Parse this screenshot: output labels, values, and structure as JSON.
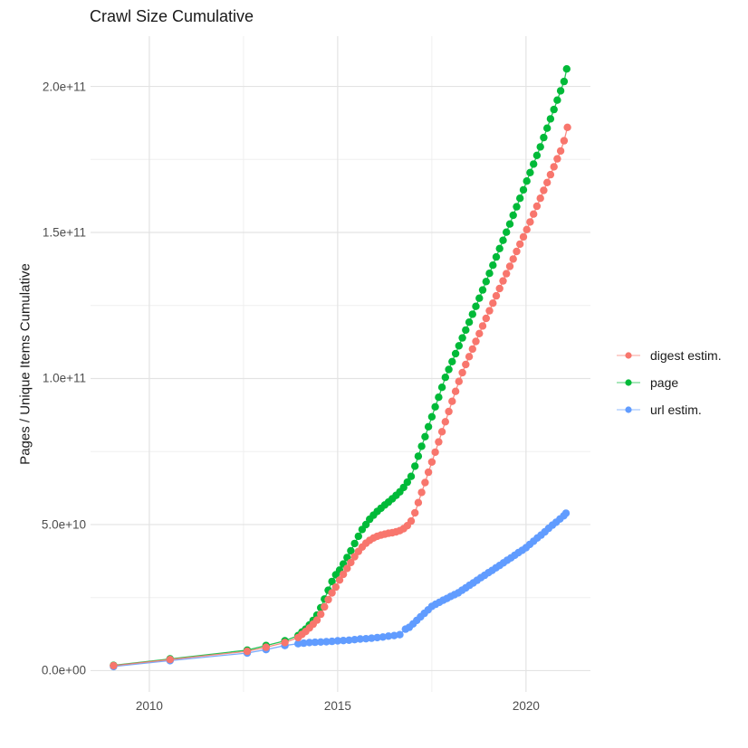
{
  "title": "Crawl Size Cumulative",
  "axes": {
    "y_title": "Pages / Unique Items Cumulative",
    "x_title": "",
    "x_ticks": [
      {
        "value": 2010,
        "label": "2010"
      },
      {
        "value": 2015,
        "label": "2015"
      },
      {
        "value": 2020,
        "label": "2020"
      }
    ],
    "x_minor": [
      2012.5,
      2017.5
    ],
    "y_ticks": [
      {
        "value_e9": 0,
        "label": "0.0e+00"
      },
      {
        "value_e9": 50,
        "label": "5.0e+10"
      },
      {
        "value_e9": 100,
        "label": "1.0e+11"
      },
      {
        "value_e9": 150,
        "label": "1.5e+11"
      },
      {
        "value_e9": 200,
        "label": "2.0e+11"
      }
    ],
    "y_minor_e9": [
      25,
      75,
      125,
      175
    ],
    "xlim": [
      2008.44,
      2021.71
    ],
    "ylim_e9": [
      -7.3,
      217.2
    ],
    "grid": true
  },
  "style": {
    "background": "#ffffff",
    "grid_major_color": "#e3e3e3",
    "grid_minor_color": "#efefef",
    "axis_text_color": "#4d4d4d",
    "title_color": "#1a1a1a"
  },
  "chart_data": {
    "type": "scatter",
    "title": "Crawl Size Cumulative",
    "xlabel": "",
    "ylabel": "Pages / Unique Items Cumulative",
    "legend_position": "right",
    "value_unit": "1e9 pages (values below are in billions)",
    "series": [
      {
        "name": "digest estim.",
        "color": "#F8766D",
        "points": [
          [
            2009.05,
            1.7
          ],
          [
            2010.55,
            3.8
          ],
          [
            2012.6,
            6.6
          ],
          [
            2013.1,
            8.0
          ],
          [
            2013.6,
            9.6
          ],
          [
            2013.95,
            11.3
          ],
          [
            2014.05,
            12.4
          ],
          [
            2014.15,
            13.4
          ],
          [
            2014.25,
            14.6
          ],
          [
            2014.35,
            15.9
          ],
          [
            2014.45,
            17.3
          ],
          [
            2014.55,
            19.3
          ],
          [
            2014.65,
            21.8
          ],
          [
            2014.75,
            24.3
          ],
          [
            2014.85,
            26.6
          ],
          [
            2014.95,
            28.6
          ],
          [
            2015.05,
            31.0
          ],
          [
            2015.15,
            33.0
          ],
          [
            2015.25,
            35.0
          ],
          [
            2015.35,
            37.0
          ],
          [
            2015.45,
            39.0
          ],
          [
            2015.55,
            40.8
          ],
          [
            2015.65,
            42.3
          ],
          [
            2015.75,
            43.6
          ],
          [
            2015.85,
            44.6
          ],
          [
            2015.95,
            45.4
          ],
          [
            2016.05,
            46.0
          ],
          [
            2016.15,
            46.4
          ],
          [
            2016.25,
            46.7
          ],
          [
            2016.35,
            47.0
          ],
          [
            2016.45,
            47.2
          ],
          [
            2016.55,
            47.5
          ],
          [
            2016.65,
            47.9
          ],
          [
            2016.75,
            48.6
          ],
          [
            2016.85,
            49.6
          ],
          [
            2016.95,
            51.2
          ],
          [
            2017.05,
            54.0
          ],
          [
            2017.14,
            57.5
          ],
          [
            2017.23,
            61.0
          ],
          [
            2017.32,
            64.4
          ],
          [
            2017.41,
            67.9
          ],
          [
            2017.5,
            71.4
          ],
          [
            2017.59,
            74.8
          ],
          [
            2017.68,
            78.3
          ],
          [
            2017.77,
            81.8
          ],
          [
            2017.86,
            85.2
          ],
          [
            2017.95,
            88.7
          ],
          [
            2018.04,
            92.2
          ],
          [
            2018.13,
            95.6
          ],
          [
            2018.22,
            99.0
          ],
          [
            2018.31,
            102.0
          ],
          [
            2018.4,
            104.8
          ],
          [
            2018.49,
            107.5
          ],
          [
            2018.58,
            110.1
          ],
          [
            2018.67,
            112.7
          ],
          [
            2018.76,
            115.4
          ],
          [
            2018.85,
            118.0
          ],
          [
            2018.94,
            120.6
          ],
          [
            2019.03,
            123.2
          ],
          [
            2019.12,
            125.8
          ],
          [
            2019.21,
            128.3
          ],
          [
            2019.3,
            130.8
          ],
          [
            2019.39,
            133.4
          ],
          [
            2019.48,
            135.9
          ],
          [
            2019.57,
            138.4
          ],
          [
            2019.66,
            140.9
          ],
          [
            2019.75,
            143.5
          ],
          [
            2019.84,
            146.0
          ],
          [
            2019.93,
            148.5
          ],
          [
            2020.02,
            151.0
          ],
          [
            2020.11,
            153.6
          ],
          [
            2020.2,
            156.3
          ],
          [
            2020.29,
            159.0
          ],
          [
            2020.38,
            161.7
          ],
          [
            2020.47,
            164.4
          ],
          [
            2020.56,
            167.1
          ],
          [
            2020.65,
            169.8
          ],
          [
            2020.74,
            172.5
          ],
          [
            2020.83,
            175.2
          ],
          [
            2020.92,
            177.9
          ],
          [
            2021.01,
            181.4
          ],
          [
            2021.1,
            186.0
          ]
        ]
      },
      {
        "name": "page",
        "color": "#00BA38",
        "points": [
          [
            2009.05,
            1.8
          ],
          [
            2010.55,
            4.0
          ],
          [
            2012.6,
            7.0
          ],
          [
            2013.1,
            8.6
          ],
          [
            2013.6,
            10.2
          ],
          [
            2013.95,
            12.0
          ],
          [
            2014.05,
            13.2
          ],
          [
            2014.15,
            14.2
          ],
          [
            2014.25,
            15.6
          ],
          [
            2014.35,
            17.2
          ],
          [
            2014.45,
            19.0
          ],
          [
            2014.55,
            21.5
          ],
          [
            2014.65,
            24.5
          ],
          [
            2014.75,
            27.5
          ],
          [
            2014.85,
            30.5
          ],
          [
            2014.95,
            32.8
          ],
          [
            2015.05,
            34.4
          ],
          [
            2015.15,
            36.5
          ],
          [
            2015.25,
            38.7
          ],
          [
            2015.35,
            41.0
          ],
          [
            2015.45,
            43.5
          ],
          [
            2015.55,
            46.0
          ],
          [
            2015.65,
            48.3
          ],
          [
            2015.75,
            50.0
          ],
          [
            2015.85,
            51.8
          ],
          [
            2015.95,
            53.2
          ],
          [
            2016.05,
            54.5
          ],
          [
            2016.15,
            55.6
          ],
          [
            2016.25,
            56.7
          ],
          [
            2016.35,
            57.7
          ],
          [
            2016.45,
            58.8
          ],
          [
            2016.55,
            60.0
          ],
          [
            2016.65,
            61.2
          ],
          [
            2016.75,
            62.7
          ],
          [
            2016.85,
            64.5
          ],
          [
            2016.95,
            66.5
          ],
          [
            2017.05,
            70.0
          ],
          [
            2017.14,
            73.4
          ],
          [
            2017.23,
            76.8
          ],
          [
            2017.32,
            80.1
          ],
          [
            2017.41,
            83.5
          ],
          [
            2017.5,
            86.9
          ],
          [
            2017.59,
            90.3
          ],
          [
            2017.68,
            93.6
          ],
          [
            2017.77,
            97.0
          ],
          [
            2017.86,
            100.4
          ],
          [
            2017.95,
            103.1
          ],
          [
            2018.04,
            105.8
          ],
          [
            2018.13,
            108.5
          ],
          [
            2018.22,
            111.2
          ],
          [
            2018.31,
            113.9
          ],
          [
            2018.4,
            116.6
          ],
          [
            2018.49,
            119.3
          ],
          [
            2018.58,
            122.0
          ],
          [
            2018.67,
            124.7
          ],
          [
            2018.76,
            127.5
          ],
          [
            2018.85,
            130.3
          ],
          [
            2018.94,
            133.2
          ],
          [
            2019.03,
            136.0
          ],
          [
            2019.12,
            138.8
          ],
          [
            2019.21,
            141.6
          ],
          [
            2019.3,
            144.5
          ],
          [
            2019.39,
            147.3
          ],
          [
            2019.48,
            150.1
          ],
          [
            2019.57,
            152.9
          ],
          [
            2019.66,
            155.9
          ],
          [
            2019.75,
            158.8
          ],
          [
            2019.84,
            161.7
          ],
          [
            2019.93,
            164.6
          ],
          [
            2020.02,
            167.6
          ],
          [
            2020.11,
            170.5
          ],
          [
            2020.2,
            173.4
          ],
          [
            2020.29,
            176.4
          ],
          [
            2020.38,
            179.3
          ],
          [
            2020.47,
            182.5
          ],
          [
            2020.56,
            185.7
          ],
          [
            2020.65,
            188.9
          ],
          [
            2020.74,
            192.1
          ],
          [
            2020.83,
            195.3
          ],
          [
            2020.92,
            198.5
          ],
          [
            2021.01,
            201.7
          ],
          [
            2021.08,
            206.0
          ]
        ]
      },
      {
        "name": "url estim.",
        "color": "#619CFF",
        "points": [
          [
            2009.05,
            1.4
          ],
          [
            2010.55,
            3.4
          ],
          [
            2012.6,
            6.0
          ],
          [
            2013.1,
            7.2
          ],
          [
            2013.6,
            8.6
          ],
          [
            2013.95,
            9.2
          ],
          [
            2014.1,
            9.4
          ],
          [
            2014.25,
            9.6
          ],
          [
            2014.4,
            9.7
          ],
          [
            2014.55,
            9.8
          ],
          [
            2014.7,
            9.9
          ],
          [
            2014.85,
            10.0
          ],
          [
            2015.0,
            10.2
          ],
          [
            2015.15,
            10.3
          ],
          [
            2015.3,
            10.4
          ],
          [
            2015.45,
            10.6
          ],
          [
            2015.6,
            10.8
          ],
          [
            2015.75,
            10.9
          ],
          [
            2015.9,
            11.1
          ],
          [
            2016.05,
            11.3
          ],
          [
            2016.2,
            11.5
          ],
          [
            2016.35,
            11.8
          ],
          [
            2016.5,
            12.0
          ],
          [
            2016.65,
            12.3
          ],
          [
            2016.8,
            14.2
          ],
          [
            2016.9,
            14.8
          ],
          [
            2017.0,
            16.0
          ],
          [
            2017.1,
            17.2
          ],
          [
            2017.2,
            18.4
          ],
          [
            2017.3,
            19.6
          ],
          [
            2017.4,
            20.8
          ],
          [
            2017.5,
            22.0
          ],
          [
            2017.6,
            22.7
          ],
          [
            2017.7,
            23.4
          ],
          [
            2017.8,
            24.1
          ],
          [
            2017.9,
            24.7
          ],
          [
            2018.0,
            25.4
          ],
          [
            2018.1,
            26.0
          ],
          [
            2018.2,
            26.6
          ],
          [
            2018.3,
            27.5
          ],
          [
            2018.4,
            28.3
          ],
          [
            2018.5,
            29.2
          ],
          [
            2018.6,
            30.0
          ],
          [
            2018.7,
            30.9
          ],
          [
            2018.8,
            31.8
          ],
          [
            2018.9,
            32.6
          ],
          [
            2019.0,
            33.5
          ],
          [
            2019.1,
            34.3
          ],
          [
            2019.2,
            35.2
          ],
          [
            2019.3,
            36.0
          ],
          [
            2019.4,
            36.9
          ],
          [
            2019.5,
            37.8
          ],
          [
            2019.6,
            38.6
          ],
          [
            2019.7,
            39.5
          ],
          [
            2019.8,
            40.4
          ],
          [
            2019.9,
            41.2
          ],
          [
            2020.0,
            42.1
          ],
          [
            2020.1,
            43.2
          ],
          [
            2020.2,
            44.3
          ],
          [
            2020.3,
            45.4
          ],
          [
            2020.4,
            46.4
          ],
          [
            2020.5,
            47.5
          ],
          [
            2020.6,
            48.7
          ],
          [
            2020.7,
            49.8
          ],
          [
            2020.8,
            50.8
          ],
          [
            2020.9,
            51.9
          ],
          [
            2021.0,
            53.0
          ],
          [
            2021.06,
            53.9
          ]
        ]
      }
    ]
  }
}
